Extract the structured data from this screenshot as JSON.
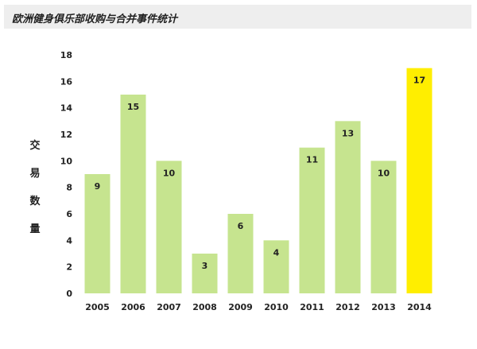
{
  "title": "欧洲健身俱乐部收购与合并事件统计",
  "chart_data": {
    "type": "bar",
    "title": "欧洲健身俱乐部收购与合并事件统计",
    "xlabel": "",
    "ylabel": "交易数量",
    "categories": [
      "2005",
      "2006",
      "2007",
      "2008",
      "2009",
      "2010",
      "2011",
      "2012",
      "2013",
      "2014"
    ],
    "values": [
      9,
      15,
      10,
      3,
      6,
      4,
      11,
      13,
      10,
      17
    ],
    "ylim": [
      0,
      18
    ],
    "yticks": [
      "0",
      "2",
      "4",
      "6",
      "8",
      "10",
      "12",
      "14",
      "16",
      "18"
    ],
    "grid": false,
    "legend": "none",
    "colors": {
      "bar": "#c6e48f",
      "highlight": "#ffee00"
    },
    "highlight_category": "2014"
  }
}
